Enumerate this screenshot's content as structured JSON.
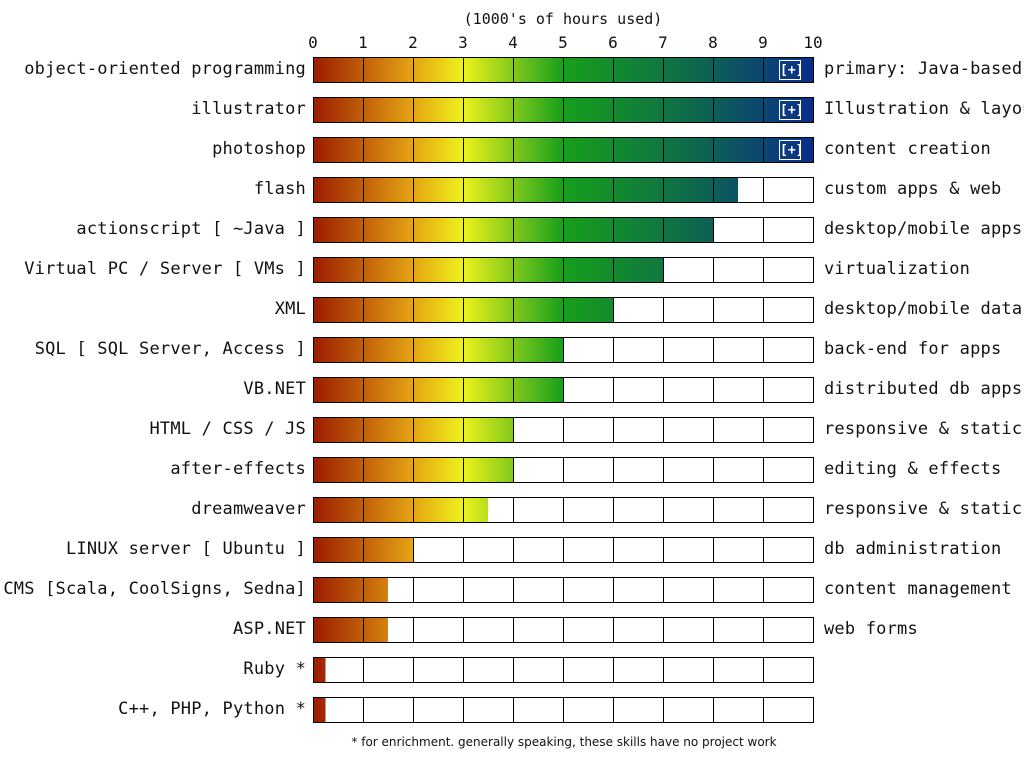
{
  "chart_data": {
    "type": "bar",
    "orientation": "horizontal",
    "title": "(1000's of hours used)",
    "xlim": [
      0,
      10
    ],
    "ticks": [
      "0",
      "1",
      "2",
      "3",
      "4",
      "5",
      "6",
      "7",
      "8",
      "9",
      "10"
    ],
    "grid": true,
    "colors": [
      "#9b1a00",
      "#e6a413",
      "#eef21c",
      "#16a01b",
      "#0f6b4a",
      "#0a2d8c"
    ],
    "series": [
      {
        "name": "object-oriented programming",
        "value": 10,
        "description": "primary: Java-based",
        "expand": "[+]"
      },
      {
        "name": "illustrator",
        "value": 10,
        "description": "Illustration & layout",
        "expand": "[+]"
      },
      {
        "name": "photoshop",
        "value": 10,
        "description": "content creation",
        "expand": "[+]"
      },
      {
        "name": "flash",
        "value": 8.5,
        "description": "custom apps & web"
      },
      {
        "name": "actionscript [ ~Java ]",
        "value": 8,
        "description": "desktop/mobile apps"
      },
      {
        "name": "Virtual PC / Server [ VMs ]",
        "value": 7,
        "description": "virtualization"
      },
      {
        "name": "XML",
        "value": 6,
        "description": "desktop/mobile data"
      },
      {
        "name": "SQL [ SQL Server, Access ]",
        "value": 5,
        "description": "back-end for apps"
      },
      {
        "name": "VB.NET",
        "value": 5,
        "description": "distributed db apps"
      },
      {
        "name": "HTML / CSS / JS",
        "value": 4,
        "description": "responsive & static"
      },
      {
        "name": "after-effects",
        "value": 4,
        "description": "editing & effects"
      },
      {
        "name": "dreamweaver",
        "value": 3.5,
        "description": "responsive & static"
      },
      {
        "name": "LINUX server [ Ubuntu ]",
        "value": 2,
        "description": "db administration"
      },
      {
        "name": "CMS [Scala, CoolSigns, Sedna]",
        "value": 1.5,
        "description": "content management"
      },
      {
        "name": "ASP.NET",
        "value": 1.5,
        "description": "web forms"
      },
      {
        "name": "Ruby *",
        "value": 0.25,
        "description": ""
      },
      {
        "name": "C++, PHP, Python *",
        "value": 0.25,
        "description": ""
      }
    ],
    "footnote": "* for enrichment. generally speaking, these skills have no project work"
  }
}
